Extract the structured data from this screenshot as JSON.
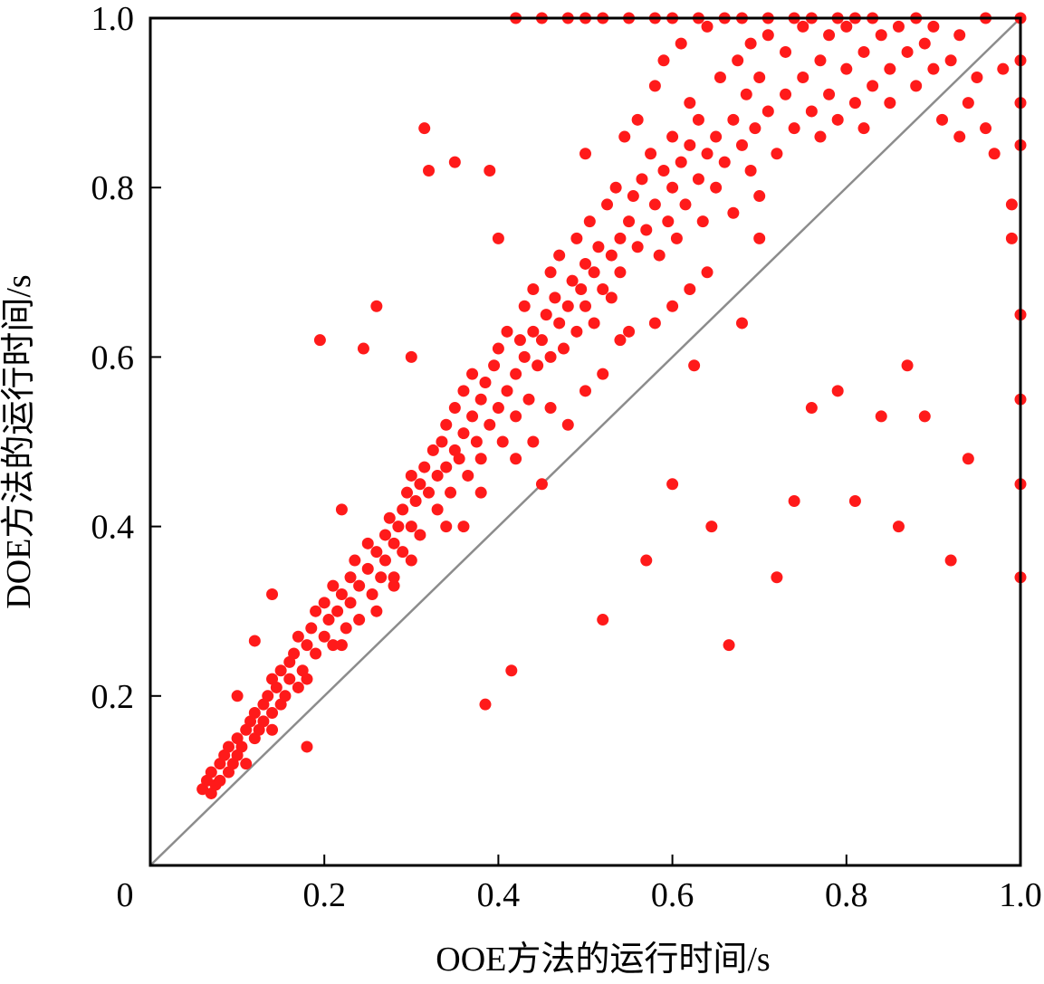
{
  "chart_data": {
    "type": "scatter",
    "title": "",
    "xlabel": "OOE方法的运行时间/s",
    "ylabel": "DOE方法的运行时间/s",
    "xlim": [
      0,
      1.0
    ],
    "ylim": [
      0,
      1.0
    ],
    "x_ticks": [
      0,
      0.2,
      0.4,
      0.6,
      0.8,
      1.0
    ],
    "y_ticks": [
      0.2,
      0.4,
      0.6,
      0.8,
      1.0
    ],
    "x_tick_labels": [
      "0",
      "0.2",
      "0.4",
      "0.6",
      "0.8",
      "1.0"
    ],
    "y_tick_labels": [
      "0.2",
      "0.4",
      "0.6",
      "0.8",
      "1.0"
    ],
    "grid": false,
    "legend": "none",
    "reference_line": {
      "from": [
        0,
        0
      ],
      "to": [
        1.0,
        1.0
      ],
      "color": "#8c8c8c"
    },
    "series": [
      {
        "color": "#ff1a1a",
        "points": [
          [
            0.06,
            0.09
          ],
          [
            0.065,
            0.1
          ],
          [
            0.07,
            0.085
          ],
          [
            0.07,
            0.11
          ],
          [
            0.075,
            0.095
          ],
          [
            0.08,
            0.12
          ],
          [
            0.08,
            0.1
          ],
          [
            0.085,
            0.13
          ],
          [
            0.09,
            0.11
          ],
          [
            0.09,
            0.14
          ],
          [
            0.095,
            0.12
          ],
          [
            0.1,
            0.15
          ],
          [
            0.1,
            0.13
          ],
          [
            0.1,
            0.2
          ],
          [
            0.105,
            0.14
          ],
          [
            0.11,
            0.16
          ],
          [
            0.11,
            0.12
          ],
          [
            0.115,
            0.17
          ],
          [
            0.12,
            0.15
          ],
          [
            0.12,
            0.18
          ],
          [
            0.12,
            0.265
          ],
          [
            0.125,
            0.16
          ],
          [
            0.13,
            0.19
          ],
          [
            0.13,
            0.17
          ],
          [
            0.135,
            0.2
          ],
          [
            0.14,
            0.18
          ],
          [
            0.14,
            0.22
          ],
          [
            0.14,
            0.32
          ],
          [
            0.145,
            0.21
          ],
          [
            0.15,
            0.19
          ],
          [
            0.15,
            0.23
          ],
          [
            0.155,
            0.2
          ],
          [
            0.16,
            0.24
          ],
          [
            0.16,
            0.22
          ],
          [
            0.165,
            0.25
          ],
          [
            0.17,
            0.21
          ],
          [
            0.17,
            0.27
          ],
          [
            0.175,
            0.23
          ],
          [
            0.18,
            0.26
          ],
          [
            0.18,
            0.14
          ],
          [
            0.185,
            0.28
          ],
          [
            0.19,
            0.25
          ],
          [
            0.19,
            0.3
          ],
          [
            0.195,
            0.62
          ],
          [
            0.2,
            0.27
          ],
          [
            0.2,
            0.31
          ],
          [
            0.205,
            0.29
          ],
          [
            0.21,
            0.33
          ],
          [
            0.21,
            0.26
          ],
          [
            0.215,
            0.3
          ],
          [
            0.22,
            0.32
          ],
          [
            0.22,
            0.42
          ],
          [
            0.225,
            0.28
          ],
          [
            0.23,
            0.34
          ],
          [
            0.23,
            0.31
          ],
          [
            0.235,
            0.36
          ],
          [
            0.24,
            0.33
          ],
          [
            0.24,
            0.29
          ],
          [
            0.245,
            0.61
          ],
          [
            0.25,
            0.35
          ],
          [
            0.25,
            0.38
          ],
          [
            0.255,
            0.32
          ],
          [
            0.26,
            0.37
          ],
          [
            0.26,
            0.66
          ],
          [
            0.265,
            0.34
          ],
          [
            0.27,
            0.39
          ],
          [
            0.27,
            0.36
          ],
          [
            0.275,
            0.41
          ],
          [
            0.28,
            0.38
          ],
          [
            0.28,
            0.33
          ],
          [
            0.285,
            0.4
          ],
          [
            0.29,
            0.42
          ],
          [
            0.29,
            0.37
          ],
          [
            0.295,
            0.44
          ],
          [
            0.3,
            0.4
          ],
          [
            0.3,
            0.46
          ],
          [
            0.3,
            0.6
          ],
          [
            0.305,
            0.43
          ],
          [
            0.31,
            0.45
          ],
          [
            0.31,
            0.39
          ],
          [
            0.315,
            0.87
          ],
          [
            0.315,
            0.47
          ],
          [
            0.32,
            0.44
          ],
          [
            0.32,
            0.82
          ],
          [
            0.325,
            0.49
          ],
          [
            0.33,
            0.46
          ],
          [
            0.33,
            0.42
          ],
          [
            0.335,
            0.5
          ],
          [
            0.34,
            0.47
          ],
          [
            0.34,
            0.52
          ],
          [
            0.345,
            0.44
          ],
          [
            0.35,
            0.49
          ],
          [
            0.35,
            0.54
          ],
          [
            0.35,
            0.83
          ],
          [
            0.355,
            0.48
          ],
          [
            0.36,
            0.51
          ],
          [
            0.36,
            0.56
          ],
          [
            0.365,
            0.46
          ],
          [
            0.37,
            0.53
          ],
          [
            0.37,
            0.58
          ],
          [
            0.375,
            0.5
          ],
          [
            0.38,
            0.55
          ],
          [
            0.38,
            0.48
          ],
          [
            0.385,
            0.57
          ],
          [
            0.385,
            0.19
          ],
          [
            0.39,
            0.52
          ],
          [
            0.39,
            0.82
          ],
          [
            0.395,
            0.59
          ],
          [
            0.4,
            0.54
          ],
          [
            0.4,
            0.61
          ],
          [
            0.4,
            0.74
          ],
          [
            0.405,
            0.5
          ],
          [
            0.41,
            0.56
          ],
          [
            0.41,
            0.63
          ],
          [
            0.415,
            0.23
          ],
          [
            0.42,
            0.58
          ],
          [
            0.42,
            0.53
          ],
          [
            0.425,
            0.62
          ],
          [
            0.43,
            0.6
          ],
          [
            0.43,
            0.66
          ],
          [
            0.435,
            0.55
          ],
          [
            0.44,
            0.63
          ],
          [
            0.44,
            0.68
          ],
          [
            0.445,
            0.59
          ],
          [
            0.45,
            0.62
          ],
          [
            0.45,
            0.45
          ],
          [
            0.455,
            0.65
          ],
          [
            0.46,
            0.7
          ],
          [
            0.46,
            0.6
          ],
          [
            0.465,
            0.67
          ],
          [
            0.47,
            0.64
          ],
          [
            0.47,
            0.72
          ],
          [
            0.475,
            0.61
          ],
          [
            0.48,
            0.66
          ],
          [
            0.48,
            0.52
          ],
          [
            0.485,
            0.69
          ],
          [
            0.49,
            0.74
          ],
          [
            0.49,
            0.63
          ],
          [
            0.495,
            0.68
          ],
          [
            0.5,
            0.71
          ],
          [
            0.5,
            0.66
          ],
          [
            0.5,
            0.84
          ],
          [
            0.505,
            0.76
          ],
          [
            0.51,
            0.7
          ],
          [
            0.51,
            0.64
          ],
          [
            0.515,
            0.73
          ],
          [
            0.52,
            0.68
          ],
          [
            0.52,
            0.29
          ],
          [
            0.525,
            0.78
          ],
          [
            0.53,
            0.72
          ],
          [
            0.53,
            0.67
          ],
          [
            0.535,
            0.8
          ],
          [
            0.54,
            0.74
          ],
          [
            0.54,
            0.7
          ],
          [
            0.545,
            0.86
          ],
          [
            0.55,
            0.76
          ],
          [
            0.55,
            0.63
          ],
          [
            0.555,
            0.79
          ],
          [
            0.56,
            0.73
          ],
          [
            0.56,
            0.88
          ],
          [
            0.565,
            0.81
          ],
          [
            0.57,
            0.75
          ],
          [
            0.57,
            0.36
          ],
          [
            0.575,
            0.84
          ],
          [
            0.58,
            0.78
          ],
          [
            0.58,
            0.92
          ],
          [
            0.585,
            0.72
          ],
          [
            0.59,
            0.82
          ],
          [
            0.59,
            0.95
          ],
          [
            0.595,
            0.76
          ],
          [
            0.6,
            0.8
          ],
          [
            0.6,
            0.86
          ],
          [
            0.6,
            0.45
          ],
          [
            0.605,
            0.74
          ],
          [
            0.61,
            0.83
          ],
          [
            0.61,
            0.97
          ],
          [
            0.615,
            0.78
          ],
          [
            0.62,
            0.85
          ],
          [
            0.62,
            0.9
          ],
          [
            0.625,
            0.59
          ],
          [
            0.63,
            0.81
          ],
          [
            0.63,
            0.88
          ],
          [
            0.635,
            0.76
          ],
          [
            0.64,
            0.84
          ],
          [
            0.64,
            0.99
          ],
          [
            0.645,
            0.4
          ],
          [
            0.65,
            0.86
          ],
          [
            0.65,
            0.8
          ],
          [
            0.655,
            0.93
          ],
          [
            0.66,
            0.83
          ],
          [
            0.665,
            0.26
          ],
          [
            0.67,
            0.88
          ],
          [
            0.67,
            0.77
          ],
          [
            0.675,
            0.95
          ],
          [
            0.68,
            0.85
          ],
          [
            0.68,
            0.64
          ],
          [
            0.685,
            0.91
          ],
          [
            0.69,
            0.82
          ],
          [
            0.69,
            0.97
          ],
          [
            0.695,
            0.87
          ],
          [
            0.7,
            0.93
          ],
          [
            0.7,
            0.79
          ],
          [
            0.71,
            0.89
          ],
          [
            0.71,
            0.98
          ],
          [
            0.72,
            0.84
          ],
          [
            0.72,
            0.34
          ],
          [
            0.73,
            0.91
          ],
          [
            0.73,
            0.96
          ],
          [
            0.74,
            0.87
          ],
          [
            0.74,
            0.43
          ],
          [
            0.75,
            0.93
          ],
          [
            0.75,
            0.99
          ],
          [
            0.76,
            0.89
          ],
          [
            0.76,
            0.54
          ],
          [
            0.77,
            0.95
          ],
          [
            0.77,
            0.86
          ],
          [
            0.78,
            0.91
          ],
          [
            0.78,
            0.98
          ],
          [
            0.79,
            0.88
          ],
          [
            0.79,
            0.56
          ],
          [
            0.8,
            0.94
          ],
          [
            0.8,
            0.99
          ],
          [
            0.81,
            0.9
          ],
          [
            0.81,
            0.43
          ],
          [
            0.82,
            0.96
          ],
          [
            0.82,
            0.87
          ],
          [
            0.83,
            0.92
          ],
          [
            0.83,
            1.0
          ],
          [
            0.84,
            0.98
          ],
          [
            0.84,
            0.53
          ],
          [
            0.85,
            0.94
          ],
          [
            0.85,
            0.9
          ],
          [
            0.86,
            0.99
          ],
          [
            0.86,
            0.4
          ],
          [
            0.87,
            0.96
          ],
          [
            0.87,
            0.59
          ],
          [
            0.88,
            0.92
          ],
          [
            0.88,
            1.0
          ],
          [
            0.89,
            0.97
          ],
          [
            0.89,
            0.53
          ],
          [
            0.9,
            0.94
          ],
          [
            0.9,
            0.99
          ],
          [
            0.91,
            0.88
          ],
          [
            0.92,
            0.95
          ],
          [
            0.92,
            0.36
          ],
          [
            0.93,
            0.98
          ],
          [
            0.93,
            0.86
          ],
          [
            0.94,
            0.9
          ],
          [
            0.94,
            0.48
          ],
          [
            0.95,
            0.93
          ],
          [
            0.96,
            0.87
          ],
          [
            0.96,
            1.0
          ],
          [
            0.97,
            0.84
          ],
          [
            0.98,
            0.94
          ],
          [
            0.99,
            0.78
          ],
          [
            0.99,
            0.74
          ],
          [
            1.0,
            0.65
          ],
          [
            1.0,
            0.55
          ],
          [
            1.0,
            0.45
          ],
          [
            1.0,
            0.34
          ],
          [
            0.42,
            1.0
          ],
          [
            0.45,
            1.0
          ],
          [
            0.48,
            1.0
          ],
          [
            0.5,
            1.0
          ],
          [
            0.52,
            1.0
          ],
          [
            0.55,
            1.0
          ],
          [
            0.58,
            1.0
          ],
          [
            0.6,
            1.0
          ],
          [
            0.63,
            1.0
          ],
          [
            0.66,
            1.0
          ],
          [
            0.68,
            1.0
          ],
          [
            0.71,
            1.0
          ],
          [
            0.74,
            1.0
          ],
          [
            0.76,
            1.0
          ],
          [
            0.79,
            1.0
          ],
          [
            0.81,
            1.0
          ],
          [
            1.0,
            1.0
          ],
          [
            1.0,
            0.95
          ],
          [
            1.0,
            0.9
          ],
          [
            1.0,
            0.85
          ],
          [
            0.28,
            0.34
          ],
          [
            0.36,
            0.4
          ],
          [
            0.44,
            0.5
          ],
          [
            0.52,
            0.58
          ],
          [
            0.6,
            0.66
          ],
          [
            0.64,
            0.7
          ],
          [
            0.58,
            0.64
          ],
          [
            0.5,
            0.56
          ],
          [
            0.42,
            0.48
          ],
          [
            0.34,
            0.4
          ],
          [
            0.26,
            0.3
          ],
          [
            0.18,
            0.22
          ],
          [
            0.14,
            0.16
          ],
          [
            0.22,
            0.26
          ],
          [
            0.3,
            0.36
          ],
          [
            0.38,
            0.44
          ],
          [
            0.46,
            0.54
          ],
          [
            0.54,
            0.62
          ],
          [
            0.62,
            0.68
          ],
          [
            0.7,
            0.74
          ]
        ]
      }
    ]
  }
}
